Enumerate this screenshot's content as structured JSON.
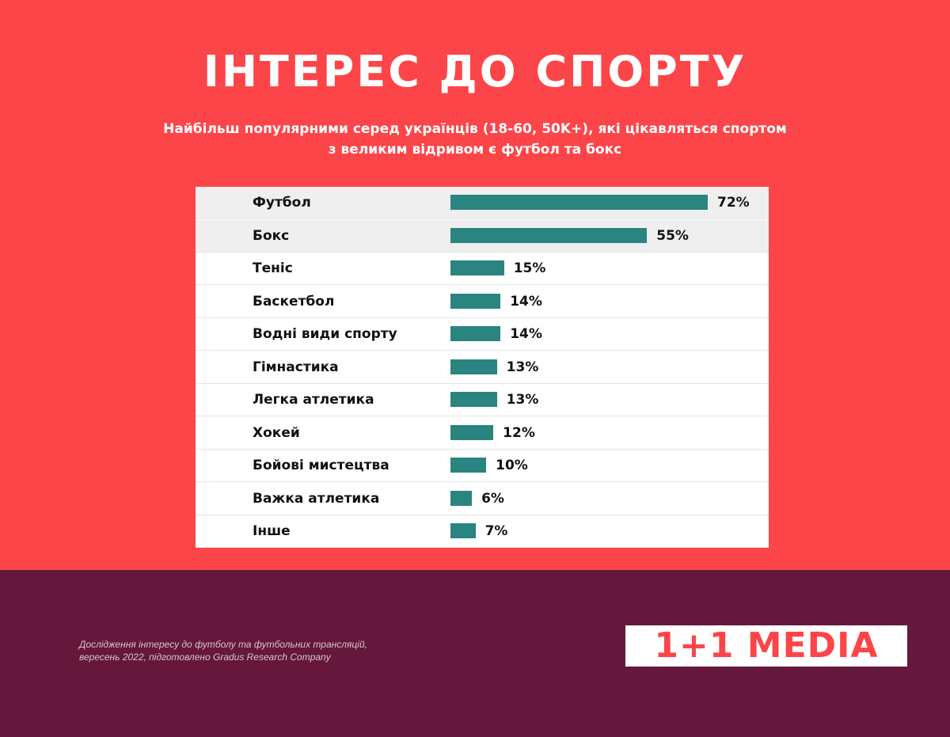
{
  "title": "ІНТЕРЕС ДО СПОРТУ",
  "subtitle_line1": "Найбільш популярними серед українців (18-60, 50K+), які цікавляться спортом",
  "subtitle_line2": "з великим відривом є футбол та бокс",
  "colors": {
    "background_top": "#fc4549",
    "background_bottom": "#65183c",
    "bar": "#2a847f",
    "logo": "#fc4549"
  },
  "chart_data": {
    "type": "bar",
    "orientation": "horizontal",
    "categories": [
      "Футбол",
      "Бокс",
      "Теніс",
      "Баскетбол",
      "Водні види спорту",
      "Гімнастика",
      "Легка атлетика",
      "Хокей",
      "Бойові мистецтва",
      "Важка атлетика",
      "Інше"
    ],
    "values": [
      72,
      55,
      15,
      14,
      14,
      13,
      13,
      12,
      10,
      6,
      7
    ],
    "value_labels": [
      "72%",
      "55%",
      "15%",
      "14%",
      "14%",
      "13%",
      "13%",
      "12%",
      "10%",
      "6%",
      "7%"
    ],
    "highlighted_rows": [
      0,
      1
    ],
    "xlim": [
      0,
      72
    ],
    "grid": false,
    "legend": "none"
  },
  "footer": {
    "source_line1": "Дослідження інтересу до футболу та футбольних трансляцій,",
    "source_line2": "вересень 2022, підготовлено Gradus Research Company",
    "logo_text": "1+1 MEDIA"
  }
}
